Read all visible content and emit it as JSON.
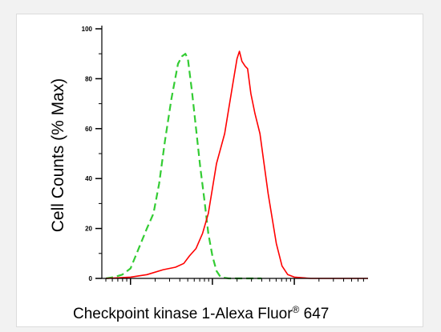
{
  "chart_data": {
    "type": "line",
    "xlabel": "Checkpoint kinase 1-Alexa Fluor",
    "xlabel_superscript": "®",
    "xlabel_suffix": " 647",
    "ylabel": "Cell Counts (% Max)",
    "ylim": [
      0,
      100
    ],
    "y_ticks": [
      0,
      20,
      40,
      60,
      80,
      100
    ],
    "x_scale": "log",
    "x_tick_labels_shown": false,
    "x_decades": [
      -0.35,
      2.9
    ],
    "legend": "none",
    "grid": false,
    "series": [
      {
        "color": "#33cc33",
        "style": "dashed",
        "points": [
          [
            -0.3,
            0
          ],
          [
            -0.2,
            0.5
          ],
          [
            -0.1,
            1.5
          ],
          [
            0.0,
            4
          ],
          [
            0.05,
            8
          ],
          [
            0.1,
            12
          ],
          [
            0.2,
            20
          ],
          [
            0.28,
            26
          ],
          [
            0.35,
            38
          ],
          [
            0.42,
            55
          ],
          [
            0.5,
            72
          ],
          [
            0.58,
            86
          ],
          [
            0.63,
            89
          ],
          [
            0.67,
            90
          ],
          [
            0.7,
            88
          ],
          [
            0.75,
            75
          ],
          [
            0.8,
            60
          ],
          [
            0.85,
            45
          ],
          [
            0.9,
            32
          ],
          [
            0.95,
            18
          ],
          [
            1.0,
            9
          ],
          [
            1.05,
            3
          ],
          [
            1.1,
            0.5
          ],
          [
            1.2,
            0
          ],
          [
            1.4,
            0
          ],
          [
            1.6,
            0
          ]
        ]
      },
      {
        "color": "#ff0000",
        "style": "solid",
        "points": [
          [
            -0.3,
            0
          ],
          [
            0.0,
            0.5
          ],
          [
            0.2,
            1.5
          ],
          [
            0.4,
            3.5
          ],
          [
            0.55,
            4.5
          ],
          [
            0.65,
            6
          ],
          [
            0.72,
            9
          ],
          [
            0.8,
            12
          ],
          [
            0.88,
            18
          ],
          [
            0.95,
            26
          ],
          [
            1.0,
            36
          ],
          [
            1.05,
            46
          ],
          [
            1.1,
            52
          ],
          [
            1.15,
            58
          ],
          [
            1.2,
            68
          ],
          [
            1.25,
            78
          ],
          [
            1.3,
            88
          ],
          [
            1.33,
            91
          ],
          [
            1.36,
            87
          ],
          [
            1.4,
            85
          ],
          [
            1.43,
            84
          ],
          [
            1.47,
            74
          ],
          [
            1.52,
            66
          ],
          [
            1.58,
            58
          ],
          [
            1.63,
            46
          ],
          [
            1.68,
            34
          ],
          [
            1.73,
            24
          ],
          [
            1.78,
            14
          ],
          [
            1.85,
            5
          ],
          [
            1.92,
            1.5
          ],
          [
            2.0,
            0.5
          ],
          [
            2.2,
            0
          ],
          [
            2.9,
            0
          ]
        ]
      }
    ]
  }
}
